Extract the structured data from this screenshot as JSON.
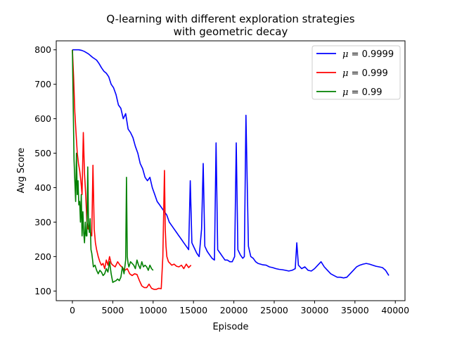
{
  "chart_data": {
    "type": "line",
    "title": "Q-learning with different exploration strategies",
    "subtitle": "with geometric decay",
    "xlabel": "Episode",
    "ylabel": "Avg Score",
    "xlim": [
      -2000,
      41200
    ],
    "ylim": [
      72,
      826
    ],
    "xticks": [
      0,
      5000,
      10000,
      15000,
      20000,
      25000,
      30000,
      35000,
      40000
    ],
    "yticks": [
      100,
      200,
      300,
      400,
      500,
      600,
      700,
      800
    ],
    "grid": false,
    "legend_position": "top-right",
    "series": [
      {
        "name": "μ = 0.9999",
        "legend_prefix": "μ",
        "legend_value": "= 0.9999",
        "color": "#0000ff",
        "x": [
          0,
          800,
          1200,
          1500,
          2000,
          2500,
          3000,
          3300,
          3600,
          3900,
          4200,
          4500,
          4800,
          5100,
          5400,
          5700,
          6000,
          6300,
          6600,
          6900,
          7200,
          7500,
          7800,
          8100,
          8400,
          8700,
          9000,
          9300,
          9600,
          9900,
          10200,
          10500,
          10800,
          11100,
          11400,
          11700,
          12000,
          12300,
          12600,
          12900,
          13200,
          13500,
          13800,
          14100,
          14400,
          14600,
          14800,
          15100,
          15400,
          15700,
          16000,
          16200,
          16400,
          16700,
          17000,
          17300,
          17600,
          17800,
          18000,
          18300,
          18600,
          18900,
          19200,
          19500,
          19800,
          20100,
          20300,
          20500,
          20800,
          21100,
          21300,
          21500,
          21800,
          22100,
          22400,
          22700,
          23000,
          23300,
          23600,
          24000,
          24400,
          24800,
          25200,
          25600,
          26000,
          26400,
          26800,
          27200,
          27600,
          27800,
          28000,
          28400,
          28800,
          29200,
          29600,
          30000,
          30400,
          30800,
          31200,
          31600,
          32000,
          32400,
          32800,
          33200,
          33600,
          34000,
          34400,
          34800,
          35200,
          35600,
          36000,
          36400,
          36800,
          37200,
          37600,
          38000,
          38400,
          38800,
          39200
        ],
        "y": [
          800,
          800,
          798,
          795,
          788,
          778,
          770,
          760,
          748,
          738,
          732,
          722,
          700,
          690,
          670,
          640,
          630,
          600,
          615,
          570,
          560,
          545,
          520,
          500,
          470,
          455,
          430,
          420,
          430,
          400,
          380,
          360,
          350,
          340,
          330,
          320,
          300,
          290,
          280,
          270,
          260,
          250,
          240,
          230,
          220,
          420,
          240,
          225,
          210,
          200,
          280,
          470,
          230,
          215,
          205,
          195,
          190,
          530,
          220,
          210,
          200,
          190,
          190,
          185,
          185,
          200,
          530,
          220,
          205,
          195,
          200,
          610,
          230,
          200,
          195,
          185,
          180,
          178,
          176,
          175,
          170,
          168,
          165,
          163,
          162,
          160,
          158,
          160,
          165,
          240,
          175,
          165,
          170,
          160,
          158,
          165,
          175,
          185,
          170,
          160,
          150,
          145,
          140,
          140,
          138,
          140,
          150,
          160,
          170,
          175,
          178,
          180,
          178,
          175,
          172,
          170,
          168,
          160,
          145
        ]
      },
      {
        "name": "μ = 0.999",
        "legend_prefix": "μ",
        "legend_value": "= 0.999",
        "color": "#ff0000",
        "x": [
          0,
          150,
          300,
          450,
          600,
          750,
          900,
          1050,
          1200,
          1350,
          1500,
          1650,
          1800,
          1950,
          2100,
          2250,
          2400,
          2550,
          2700,
          2850,
          3000,
          3200,
          3400,
          3600,
          3800,
          4000,
          4200,
          4400,
          4600,
          4800,
          5000,
          5300,
          5600,
          5900,
          6200,
          6500,
          6800,
          7100,
          7400,
          7700,
          8000,
          8300,
          8600,
          8900,
          9200,
          9500,
          9800,
          10100,
          10400,
          10700,
          11000,
          11200,
          11400,
          11500,
          11600,
          11700,
          11900,
          12100,
          12300,
          12600,
          12900,
          13200,
          13500,
          13800,
          14100,
          14400,
          14700
        ],
        "y": [
          800,
          720,
          620,
          560,
          500,
          470,
          450,
          420,
          380,
          560,
          440,
          380,
          300,
          280,
          290,
          270,
          260,
          465,
          280,
          240,
          220,
          200,
          185,
          175,
          180,
          165,
          190,
          175,
          200,
          180,
          175,
          170,
          185,
          175,
          168,
          160,
          165,
          150,
          145,
          150,
          148,
          130,
          115,
          110,
          110,
          120,
          108,
          105,
          105,
          108,
          107,
          200,
          450,
          280,
          230,
          200,
          185,
          180,
          175,
          178,
          172,
          170,
          175,
          165,
          178,
          168,
          175
        ]
      },
      {
        "name": "μ = 0.99",
        "legend_prefix": "μ",
        "legend_value": "= 0.99",
        "color": "#008000",
        "x": [
          0,
          100,
          200,
          300,
          400,
          500,
          600,
          700,
          800,
          900,
          1000,
          1100,
          1200,
          1300,
          1400,
          1500,
          1600,
          1700,
          1800,
          1900,
          2000,
          2100,
          2200,
          2300,
          2400,
          2500,
          2600,
          2800,
          3000,
          3200,
          3400,
          3600,
          3800,
          4000,
          4200,
          4400,
          4600,
          4800,
          5000,
          5200,
          5400,
          5600,
          5800,
          6000,
          6200,
          6400,
          6600,
          6700,
          6800,
          6900,
          7000,
          7200,
          7400,
          7600,
          7800,
          8000,
          8200,
          8400,
          8600,
          8800,
          9000,
          9200,
          9400,
          9600,
          9800,
          10000
        ],
        "y": [
          800,
          640,
          480,
          420,
          360,
          500,
          380,
          420,
          350,
          360,
          300,
          380,
          260,
          330,
          270,
          240,
          300,
          260,
          260,
          460,
          290,
          270,
          310,
          220,
          210,
          190,
          170,
          175,
          160,
          150,
          160,
          155,
          145,
          150,
          165,
          155,
          185,
          150,
          125,
          128,
          130,
          135,
          130,
          140,
          170,
          150,
          190,
          430,
          200,
          180,
          170,
          185,
          180,
          175,
          165,
          190,
          175,
          165,
          185,
          170,
          175,
          170,
          160,
          175,
          165,
          160
        ]
      }
    ]
  }
}
